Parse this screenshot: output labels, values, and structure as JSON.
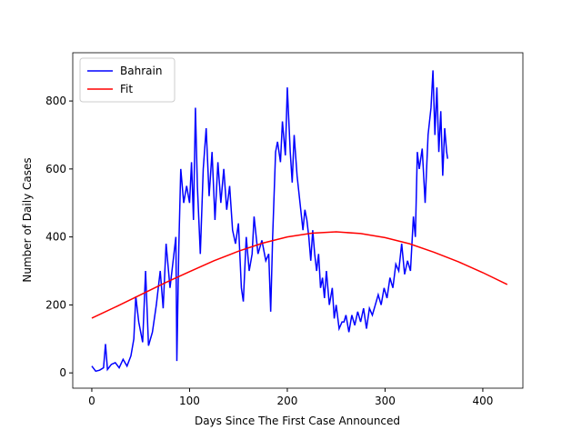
{
  "chart_data": {
    "type": "line",
    "x_label": "Days Since The First Case Announced",
    "y_label": "Number of Daily Cases",
    "xlim": [
      -19.5,
      441
    ],
    "ylim": [
      -45,
      942
    ],
    "xticks": [
      0,
      100,
      200,
      300,
      400
    ],
    "yticks": [
      0,
      200,
      400,
      600,
      800
    ],
    "legend": "upper left",
    "series": [
      {
        "name": "Bahrain",
        "color": "#0000ff",
        "x": [
          0,
          4,
          8,
          12,
          14,
          16,
          20,
          24,
          28,
          32,
          36,
          40,
          43,
          45,
          48,
          52,
          55,
          58,
          62,
          66,
          70,
          73,
          76,
          80,
          84,
          86,
          87,
          89,
          91,
          94,
          97,
          100,
          102,
          104,
          106,
          108,
          111,
          114,
          117,
          120,
          123,
          126,
          129,
          132,
          135,
          138,
          141,
          144,
          147,
          150,
          153,
          155,
          158,
          161,
          164,
          166,
          170,
          174,
          178,
          181,
          183,
          185,
          188,
          190,
          193,
          195,
          198,
          200,
          203,
          205,
          207,
          210,
          213,
          216,
          218,
          220,
          222,
          224,
          226,
          228,
          230,
          232,
          234,
          236,
          238,
          240,
          243,
          246,
          248,
          250,
          253,
          256,
          258,
          260,
          263,
          266,
          269,
          272,
          275,
          278,
          281,
          284,
          287,
          290,
          293,
          296,
          299,
          302,
          305,
          308,
          311,
          314,
          317,
          320,
          323,
          326,
          329,
          331,
          333,
          335,
          338,
          341,
          344,
          347,
          349,
          351,
          353,
          355,
          357,
          359,
          361,
          363,
          364
        ],
        "values": [
          20,
          5,
          8,
          15,
          85,
          10,
          25,
          30,
          15,
          40,
          20,
          50,
          100,
          225,
          150,
          90,
          300,
          80,
          120,
          200,
          300,
          190,
          380,
          250,
          350,
          400,
          35,
          370,
          600,
          500,
          550,
          500,
          620,
          450,
          780,
          550,
          350,
          600,
          720,
          520,
          650,
          450,
          620,
          500,
          600,
          480,
          550,
          420,
          380,
          440,
          250,
          210,
          400,
          300,
          350,
          460,
          350,
          390,
          330,
          350,
          180,
          400,
          650,
          680,
          620,
          740,
          640,
          840,
          650,
          560,
          700,
          580,
          500,
          420,
          480,
          450,
          400,
          330,
          420,
          350,
          300,
          350,
          250,
          280,
          220,
          300,
          200,
          250,
          160,
          200,
          130,
          150,
          150,
          170,
          120,
          170,
          140,
          180,
          150,
          190,
          130,
          190,
          170,
          200,
          230,
          200,
          250,
          220,
          280,
          250,
          320,
          300,
          380,
          290,
          330,
          300,
          460,
          400,
          650,
          600,
          660,
          500,
          700,
          780,
          890,
          700,
          840,
          650,
          770,
          580,
          720,
          650,
          630
        ]
      },
      {
        "name": "Fit",
        "color": "#ff0000",
        "x": [
          0,
          25,
          50,
          75,
          100,
          125,
          150,
          175,
          200,
          225,
          250,
          275,
          300,
          325,
          350,
          375,
          400,
          425
        ],
        "values": [
          161,
          195,
          230,
          265,
          298,
          330,
          358,
          382,
          400,
          411,
          415,
          410,
          398,
          380,
          355,
          327,
          295,
          260
        ]
      }
    ]
  }
}
